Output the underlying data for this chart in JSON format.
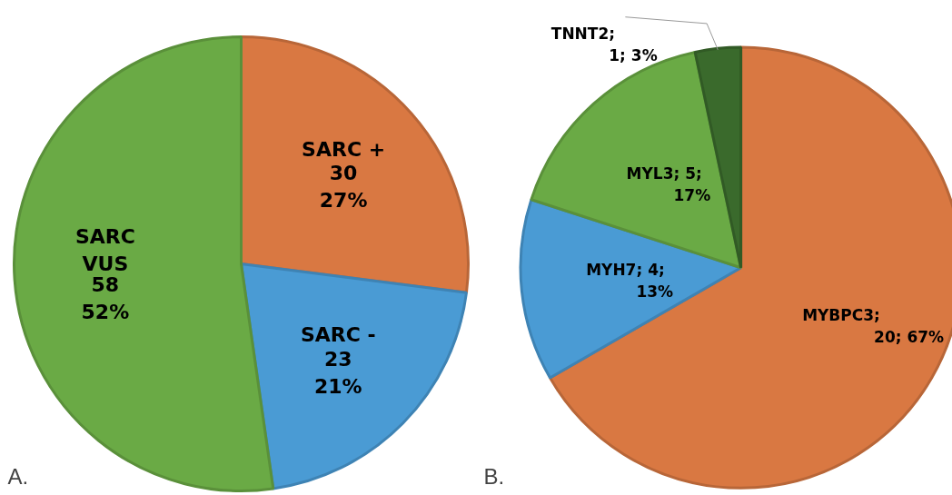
{
  "chart_data": [
    {
      "type": "pie",
      "categories": [
        "SARC +",
        "SARC -",
        "SARC VUS"
      ],
      "values": [
        30,
        23,
        58
      ],
      "colors": [
        "#d97842",
        "#4a9bd4",
        "#6aaa45"
      ],
      "value_labels": [
        "30\n27%",
        "23\n21%",
        "58\n52%"
      ],
      "annotations": [
        "A."
      ]
    },
    {
      "type": "pie",
      "categories": [
        "MYBPC3",
        "MYH7",
        "MYL3",
        "TNNT2"
      ],
      "values": [
        20,
        4,
        5,
        1
      ],
      "colors": [
        "#d97842",
        "#4a9bd4",
        "#6aaa45",
        "#3a6a2c"
      ],
      "value_labels": [
        ";\n20; 67%",
        "; 4;\n13%",
        "; 5;\n17%",
        ";\n1; 3%"
      ],
      "annotations": [
        "B."
      ]
    }
  ]
}
